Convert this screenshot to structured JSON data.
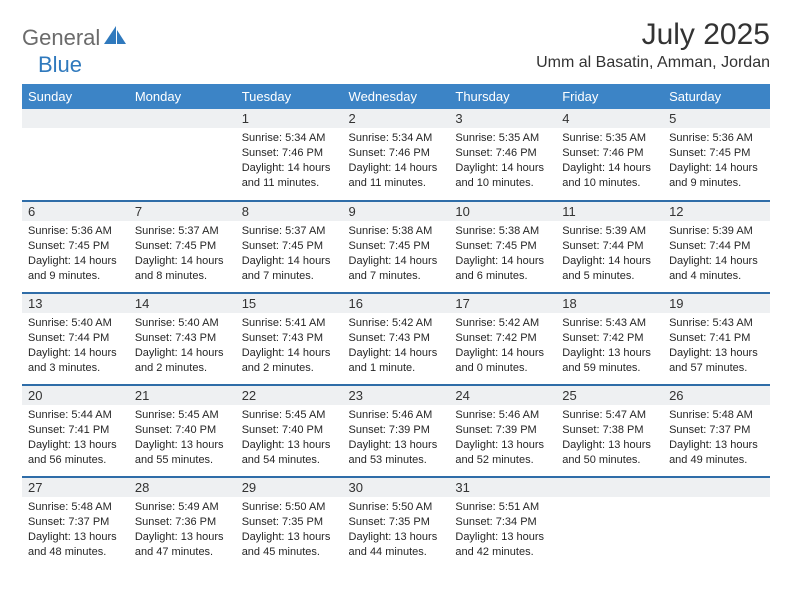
{
  "brand": {
    "general": "General",
    "blue": "Blue"
  },
  "title": "July 2025",
  "location": "Umm al Basatin, Amman, Jordan",
  "colors": {
    "header_bg": "#3c84c6",
    "header_text": "#ffffff",
    "daynum_bg": "#eef0f2",
    "week_divider": "#2f6da8",
    "logo_blue": "#2f79bd",
    "logo_gray": "#6b6b6b",
    "text": "#333333"
  },
  "dow": [
    "Sunday",
    "Monday",
    "Tuesday",
    "Wednesday",
    "Thursday",
    "Friday",
    "Saturday"
  ],
  "weeks": [
    [
      null,
      null,
      {
        "d": "1",
        "sr": "5:34 AM",
        "ss": "7:46 PM",
        "dl": "14 hours and 11 minutes."
      },
      {
        "d": "2",
        "sr": "5:34 AM",
        "ss": "7:46 PM",
        "dl": "14 hours and 11 minutes."
      },
      {
        "d": "3",
        "sr": "5:35 AM",
        "ss": "7:46 PM",
        "dl": "14 hours and 10 minutes."
      },
      {
        "d": "4",
        "sr": "5:35 AM",
        "ss": "7:46 PM",
        "dl": "14 hours and 10 minutes."
      },
      {
        "d": "5",
        "sr": "5:36 AM",
        "ss": "7:45 PM",
        "dl": "14 hours and 9 minutes."
      }
    ],
    [
      {
        "d": "6",
        "sr": "5:36 AM",
        "ss": "7:45 PM",
        "dl": "14 hours and 9 minutes."
      },
      {
        "d": "7",
        "sr": "5:37 AM",
        "ss": "7:45 PM",
        "dl": "14 hours and 8 minutes."
      },
      {
        "d": "8",
        "sr": "5:37 AM",
        "ss": "7:45 PM",
        "dl": "14 hours and 7 minutes."
      },
      {
        "d": "9",
        "sr": "5:38 AM",
        "ss": "7:45 PM",
        "dl": "14 hours and 7 minutes."
      },
      {
        "d": "10",
        "sr": "5:38 AM",
        "ss": "7:45 PM",
        "dl": "14 hours and 6 minutes."
      },
      {
        "d": "11",
        "sr": "5:39 AM",
        "ss": "7:44 PM",
        "dl": "14 hours and 5 minutes."
      },
      {
        "d": "12",
        "sr": "5:39 AM",
        "ss": "7:44 PM",
        "dl": "14 hours and 4 minutes."
      }
    ],
    [
      {
        "d": "13",
        "sr": "5:40 AM",
        "ss": "7:44 PM",
        "dl": "14 hours and 3 minutes."
      },
      {
        "d": "14",
        "sr": "5:40 AM",
        "ss": "7:43 PM",
        "dl": "14 hours and 2 minutes."
      },
      {
        "d": "15",
        "sr": "5:41 AM",
        "ss": "7:43 PM",
        "dl": "14 hours and 2 minutes."
      },
      {
        "d": "16",
        "sr": "5:42 AM",
        "ss": "7:43 PM",
        "dl": "14 hours and 1 minute."
      },
      {
        "d": "17",
        "sr": "5:42 AM",
        "ss": "7:42 PM",
        "dl": "14 hours and 0 minutes."
      },
      {
        "d": "18",
        "sr": "5:43 AM",
        "ss": "7:42 PM",
        "dl": "13 hours and 59 minutes."
      },
      {
        "d": "19",
        "sr": "5:43 AM",
        "ss": "7:41 PM",
        "dl": "13 hours and 57 minutes."
      }
    ],
    [
      {
        "d": "20",
        "sr": "5:44 AM",
        "ss": "7:41 PM",
        "dl": "13 hours and 56 minutes."
      },
      {
        "d": "21",
        "sr": "5:45 AM",
        "ss": "7:40 PM",
        "dl": "13 hours and 55 minutes."
      },
      {
        "d": "22",
        "sr": "5:45 AM",
        "ss": "7:40 PM",
        "dl": "13 hours and 54 minutes."
      },
      {
        "d": "23",
        "sr": "5:46 AM",
        "ss": "7:39 PM",
        "dl": "13 hours and 53 minutes."
      },
      {
        "d": "24",
        "sr": "5:46 AM",
        "ss": "7:39 PM",
        "dl": "13 hours and 52 minutes."
      },
      {
        "d": "25",
        "sr": "5:47 AM",
        "ss": "7:38 PM",
        "dl": "13 hours and 50 minutes."
      },
      {
        "d": "26",
        "sr": "5:48 AM",
        "ss": "7:37 PM",
        "dl": "13 hours and 49 minutes."
      }
    ],
    [
      {
        "d": "27",
        "sr": "5:48 AM",
        "ss": "7:37 PM",
        "dl": "13 hours and 48 minutes."
      },
      {
        "d": "28",
        "sr": "5:49 AM",
        "ss": "7:36 PM",
        "dl": "13 hours and 47 minutes."
      },
      {
        "d": "29",
        "sr": "5:50 AM",
        "ss": "7:35 PM",
        "dl": "13 hours and 45 minutes."
      },
      {
        "d": "30",
        "sr": "5:50 AM",
        "ss": "7:35 PM",
        "dl": "13 hours and 44 minutes."
      },
      {
        "d": "31",
        "sr": "5:51 AM",
        "ss": "7:34 PM",
        "dl": "13 hours and 42 minutes."
      },
      null,
      null
    ]
  ],
  "labels": {
    "sunrise": "Sunrise:",
    "sunset": "Sunset:",
    "daylight": "Daylight:"
  },
  "style": {
    "body_font": "Arial",
    "th_fontsize": 13,
    "daynum_fontsize": 13,
    "content_fontsize": 11,
    "title_fontsize": 30,
    "location_fontsize": 16
  }
}
